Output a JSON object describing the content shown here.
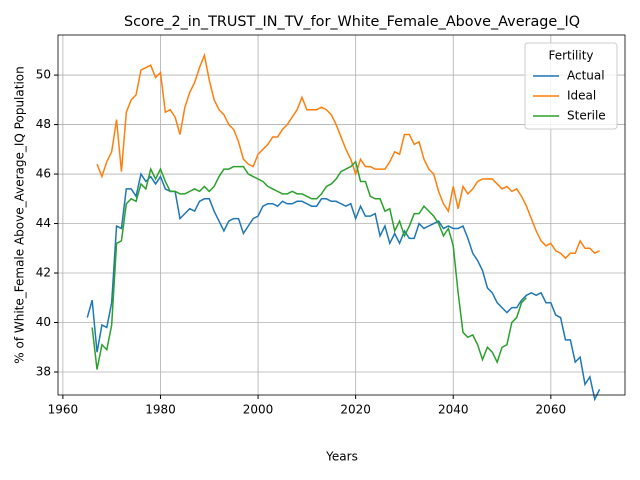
{
  "chart_data": {
    "type": "line",
    "title": "Score_2_in_TRUST_IN_TV_for_White_Female_Above_Average_IQ",
    "xlabel": "Years",
    "ylabel": "% of White_Female Above_Average_IQ Population",
    "legend_title": "Fertility",
    "legend": "upper right",
    "grid": true,
    "xlim": [
      1959,
      2075.2
    ],
    "ylim": [
      37.07,
      51.62
    ],
    "xticks": [
      1960,
      1980,
      2000,
      2020,
      2040,
      2060
    ],
    "yticks": [
      38,
      40,
      42,
      44,
      46,
      48,
      50
    ],
    "x": [
      1965,
      1966,
      1967,
      1968,
      1969,
      1970,
      1971,
      1972,
      1973,
      1974,
      1975,
      1976,
      1977,
      1978,
      1979,
      1980,
      1981,
      1982,
      1983,
      1984,
      1985,
      1986,
      1987,
      1988,
      1989,
      1990,
      1991,
      1992,
      1993,
      1994,
      1995,
      1996,
      1997,
      1998,
      1999,
      2000,
      2001,
      2002,
      2003,
      2004,
      2005,
      2006,
      2007,
      2008,
      2009,
      2010,
      2011,
      2012,
      2013,
      2014,
      2015,
      2016,
      2017,
      2018,
      2019,
      2020,
      2021,
      2022,
      2023,
      2024,
      2025,
      2026,
      2027,
      2028,
      2029,
      2030,
      2031,
      2032,
      2033,
      2034,
      2035,
      2036,
      2037,
      2038,
      2039,
      2040,
      2041,
      2042,
      2043,
      2044,
      2045,
      2046,
      2047,
      2048,
      2049,
      2050,
      2051,
      2052,
      2053,
      2054,
      2055,
      2056,
      2057,
      2058,
      2059,
      2060,
      2061,
      2062,
      2063,
      2064,
      2065,
      2066,
      2067,
      2068,
      2069,
      2070
    ],
    "series": [
      {
        "name": "Actual",
        "color": "#1f77b4",
        "values": [
          40.2,
          40.9,
          38.8,
          39.9,
          39.8,
          40.8,
          43.9,
          43.8,
          45.4,
          45.4,
          45.1,
          46.0,
          45.7,
          45.9,
          45.6,
          45.9,
          45.4,
          45.3,
          45.3,
          44.2,
          44.4,
          44.6,
          44.5,
          44.9,
          45.0,
          45.0,
          44.5,
          44.1,
          43.7,
          44.1,
          44.2,
          44.2,
          43.6,
          43.9,
          44.2,
          44.3,
          44.7,
          44.8,
          44.8,
          44.7,
          44.9,
          44.8,
          44.8,
          44.9,
          44.9,
          44.8,
          44.7,
          44.7,
          45.0,
          45.0,
          44.9,
          44.9,
          44.8,
          44.7,
          44.8,
          44.2,
          44.7,
          44.3,
          44.3,
          44.4,
          43.5,
          43.9,
          43.2,
          43.6,
          43.2,
          43.7,
          43.4,
          43.4,
          44.0,
          43.8,
          43.9,
          44.0,
          44.1,
          43.8,
          43.9,
          43.8,
          43.8,
          43.9,
          43.4,
          42.8,
          42.5,
          42.1,
          41.4,
          41.2,
          40.8,
          40.6,
          40.4,
          40.6,
          40.6,
          40.9,
          41.1,
          41.2,
          41.1,
          41.2,
          40.8,
          40.8,
          40.3,
          40.2,
          39.3,
          39.3,
          38.4,
          38.6,
          37.5,
          37.8,
          36.9,
          37.3
        ]
      },
      {
        "name": "Ideal",
        "color": "#ff7f0e",
        "values": [
          null,
          null,
          46.4,
          45.9,
          46.5,
          46.9,
          48.2,
          46.1,
          48.5,
          49.0,
          49.2,
          50.2,
          50.3,
          50.4,
          49.9,
          50.1,
          48.5,
          48.6,
          48.3,
          47.6,
          48.7,
          49.3,
          49.7,
          50.3,
          50.8,
          49.8,
          49.0,
          48.6,
          48.4,
          48.0,
          47.8,
          47.3,
          46.6,
          46.4,
          46.3,
          46.8,
          47.0,
          47.2,
          47.5,
          47.5,
          47.8,
          48.0,
          48.3,
          48.6,
          49.1,
          48.6,
          48.6,
          48.6,
          48.7,
          48.6,
          48.4,
          48.0,
          47.5,
          47.0,
          46.6,
          46.0,
          46.6,
          46.3,
          46.3,
          46.2,
          46.2,
          46.2,
          46.5,
          46.9,
          46.8,
          47.6,
          47.6,
          47.2,
          47.3,
          46.6,
          46.2,
          46.0,
          45.3,
          44.8,
          44.5,
          45.5,
          44.6,
          45.5,
          45.2,
          45.4,
          45.7,
          45.8,
          45.8,
          45.8,
          45.6,
          45.4,
          45.5,
          45.3,
          45.4,
          45.1,
          44.7,
          44.2,
          43.7,
          43.3,
          43.1,
          43.2,
          42.9,
          42.8,
          42.6,
          42.8,
          42.8,
          43.3,
          43.0,
          43.0,
          42.8,
          42.9
        ]
      },
      {
        "name": "Sterile",
        "color": "#2ca02c",
        "values": [
          null,
          39.8,
          38.1,
          39.1,
          38.9,
          39.9,
          43.2,
          43.3,
          44.8,
          45.0,
          44.9,
          45.6,
          45.4,
          46.2,
          45.8,
          46.2,
          45.7,
          45.3,
          45.3,
          45.2,
          45.2,
          45.3,
          45.4,
          45.3,
          45.5,
          45.3,
          45.5,
          45.9,
          46.2,
          46.2,
          46.3,
          46.3,
          46.3,
          46.0,
          45.9,
          45.8,
          45.7,
          45.5,
          45.4,
          45.3,
          45.2,
          45.2,
          45.3,
          45.2,
          45.2,
          45.1,
          45.0,
          45.0,
          45.2,
          45.5,
          45.6,
          45.8,
          46.1,
          46.2,
          46.3,
          46.5,
          45.7,
          45.7,
          45.1,
          45.0,
          45.0,
          44.5,
          44.6,
          43.7,
          44.1,
          43.5,
          43.9,
          44.4,
          44.4,
          44.7,
          44.5,
          44.3,
          44.0,
          43.5,
          43.8,
          43.1,
          41.2,
          39.6,
          39.4,
          39.5,
          39.1,
          38.5,
          39.0,
          38.8,
          38.4,
          39.0,
          39.1,
          40.0,
          40.2,
          40.8,
          41.0,
          null,
          null,
          null,
          null,
          null,
          null,
          null,
          null,
          null,
          null,
          null,
          null,
          null,
          null,
          null
        ]
      }
    ]
  }
}
